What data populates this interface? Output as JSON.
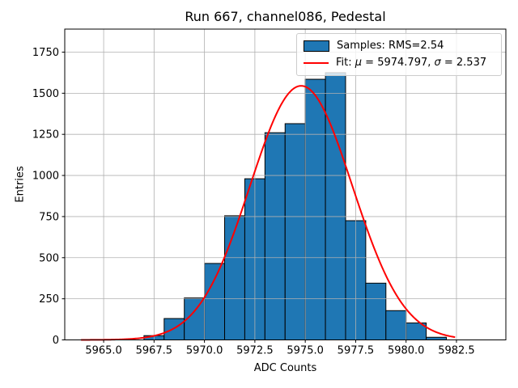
{
  "figure": {
    "background_color": "#ffffff"
  },
  "chart_data": {
    "type": "bar",
    "subtype": "histogram-with-gaussian-fit",
    "title": "Run 667, channel086, Pedestal",
    "xlabel": "ADC Counts",
    "ylabel": "Entries",
    "xlim": [
      5963.07,
      5984.95
    ],
    "ylim": [
      0,
      1890
    ],
    "x_tick_values": [
      5965.0,
      5967.5,
      5970.0,
      5972.5,
      5975.0,
      5977.5,
      5980.0,
      5982.5
    ],
    "x_tick_labels": [
      "5965.0",
      "5967.5",
      "5970.0",
      "5972.5",
      "5975.0",
      "5977.5",
      "5980.0",
      "5982.5"
    ],
    "y_tick_values": [
      0,
      250,
      500,
      750,
      1000,
      1250,
      1500,
      1750
    ],
    "y_tick_labels": [
      "0",
      "250",
      "500",
      "750",
      "1000",
      "1250",
      "1500",
      "1750"
    ],
    "grid": true,
    "grid_color": "#b0b0b0",
    "legend_position": "upper-right",
    "histogram": {
      "label": "Samples: RMS=2.54",
      "rms": 2.54,
      "bin_edges": [
        5967,
        5968,
        5969,
        5970,
        5971,
        5972,
        5973,
        5974,
        5975,
        5976,
        5977,
        5978,
        5979,
        5980,
        5981,
        5982
      ],
      "counts": [
        26,
        130,
        255,
        465,
        755,
        980,
        1260,
        1315,
        1585,
        1625,
        725,
        345,
        178,
        103,
        16
      ],
      "fill_color": "#1f77b4",
      "edge_color": "#000000"
    },
    "fit": {
      "label": "Fit: μ = 5974.797, σ = 2.537",
      "mu": 5974.797,
      "sigma": 2.537,
      "amplitude": 1545,
      "x_start": 5963.9,
      "x_end": 5982.4,
      "color": "#ff0000"
    }
  },
  "legend": {
    "samples_label": "Samples: RMS=2.54",
    "fit_parts": {
      "prefix": "Fit: ",
      "mu_symbol": "μ",
      "mu_text": " = 5974.797, ",
      "sigma_symbol": "σ",
      "sigma_text": " = 2.537"
    }
  }
}
